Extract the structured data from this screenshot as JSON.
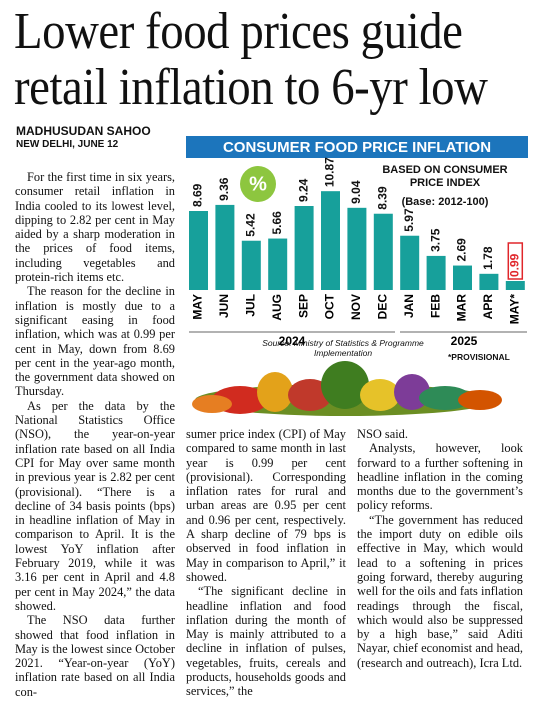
{
  "headline": [
    "Lower food prices guide",
    "retail inflation to 6-yr low"
  ],
  "byline": {
    "author": "MADHUSUDAN SAHOO",
    "dateline": "NEW DELHI, JUNE 12"
  },
  "columns": [
    [
      "For the first time in six years, consumer retail inflation in India cooled to its lowest level, dipping to 2.82 per cent in May aided by a sharp moderation in the prices of food items, including vegetables and protein-rich items etc.",
      "The reason for the decline in inflation is mostly due to a significant easing in food inflation, which was at 0.99 per cent in May, down from 8.69 per cent in the year-ago month, the government data showed on Thursday.",
      "As per the data by the National Statistics Office (NSO), the year-on-year inflation rate based on all India CPI for May over same month in previous year is 2.82 per cent (provisional). “There is a decline of 34 basis points (bps) in headline inflation of May in comparison to April. It is the lowest YoY inflation after February 2019, while it was 3.16 per cent in April and 4.8 per cent in May 2024,” the data showed.",
      "The NSO data further showed that food inflation in May is the lowest since October 2021. “Year-on-year (YoY) inflation rate based on all India con-"
    ],
    [
      "sumer price index (CPI) of May compared to same month in last year is 0.99 per cent (provisional). Corresponding inflation rates for rural and urban areas are 0.95 per cent and 0.96 per cent, respectively. A sharp decline of 79 bps is observed in food inflation in May in comparison to April,” it showed.",
      "“The significant decline in headline inflation and food inflation during the month of May is mainly attributed to a decline in inflation of pulses, vegetables, fruits, cereals and products, households goods and services,” the"
    ],
    [
      "NSO said.",
      "Analysts, however, look forward to a further softening in headline inflation in the coming months due to the government’s policy reforms.",
      "“The government has reduced the import duty on edible oils effective in May, which would lead to a softening in prices going forward, thereby auguring well for the oils and fats inflation readings through the fiscal, which would also be suppressed by a high base,” said Aditi Nayar, chief economist and head, (research and outreach), Icra Ltd."
    ]
  ],
  "chart_data": {
    "type": "bar",
    "title": "CONSUMER FOOD PRICE INFLATION",
    "subtitle": "BASED ON CONSUMER PRICE INDEX",
    "base_note": "(Base: 2012-100)",
    "icon": "%",
    "categories": [
      "MAY",
      "JUN",
      "JUL",
      "AUG",
      "SEP",
      "OCT",
      "NOV",
      "DEC",
      "JAN",
      "FEB",
      "MAR",
      "APR",
      "MAY*"
    ],
    "values": [
      8.69,
      9.36,
      5.42,
      5.66,
      9.24,
      10.87,
      9.04,
      8.39,
      5.97,
      3.75,
      2.69,
      1.78,
      0.99
    ],
    "color": "#17a09b",
    "highlight_color": "#e0262b",
    "ylim": [
      0,
      11
    ],
    "years": [
      "2024",
      "2025"
    ],
    "source": "Source: Ministry of Statistics & Programme Implementation",
    "footnote": "*PROVISIONAL"
  }
}
